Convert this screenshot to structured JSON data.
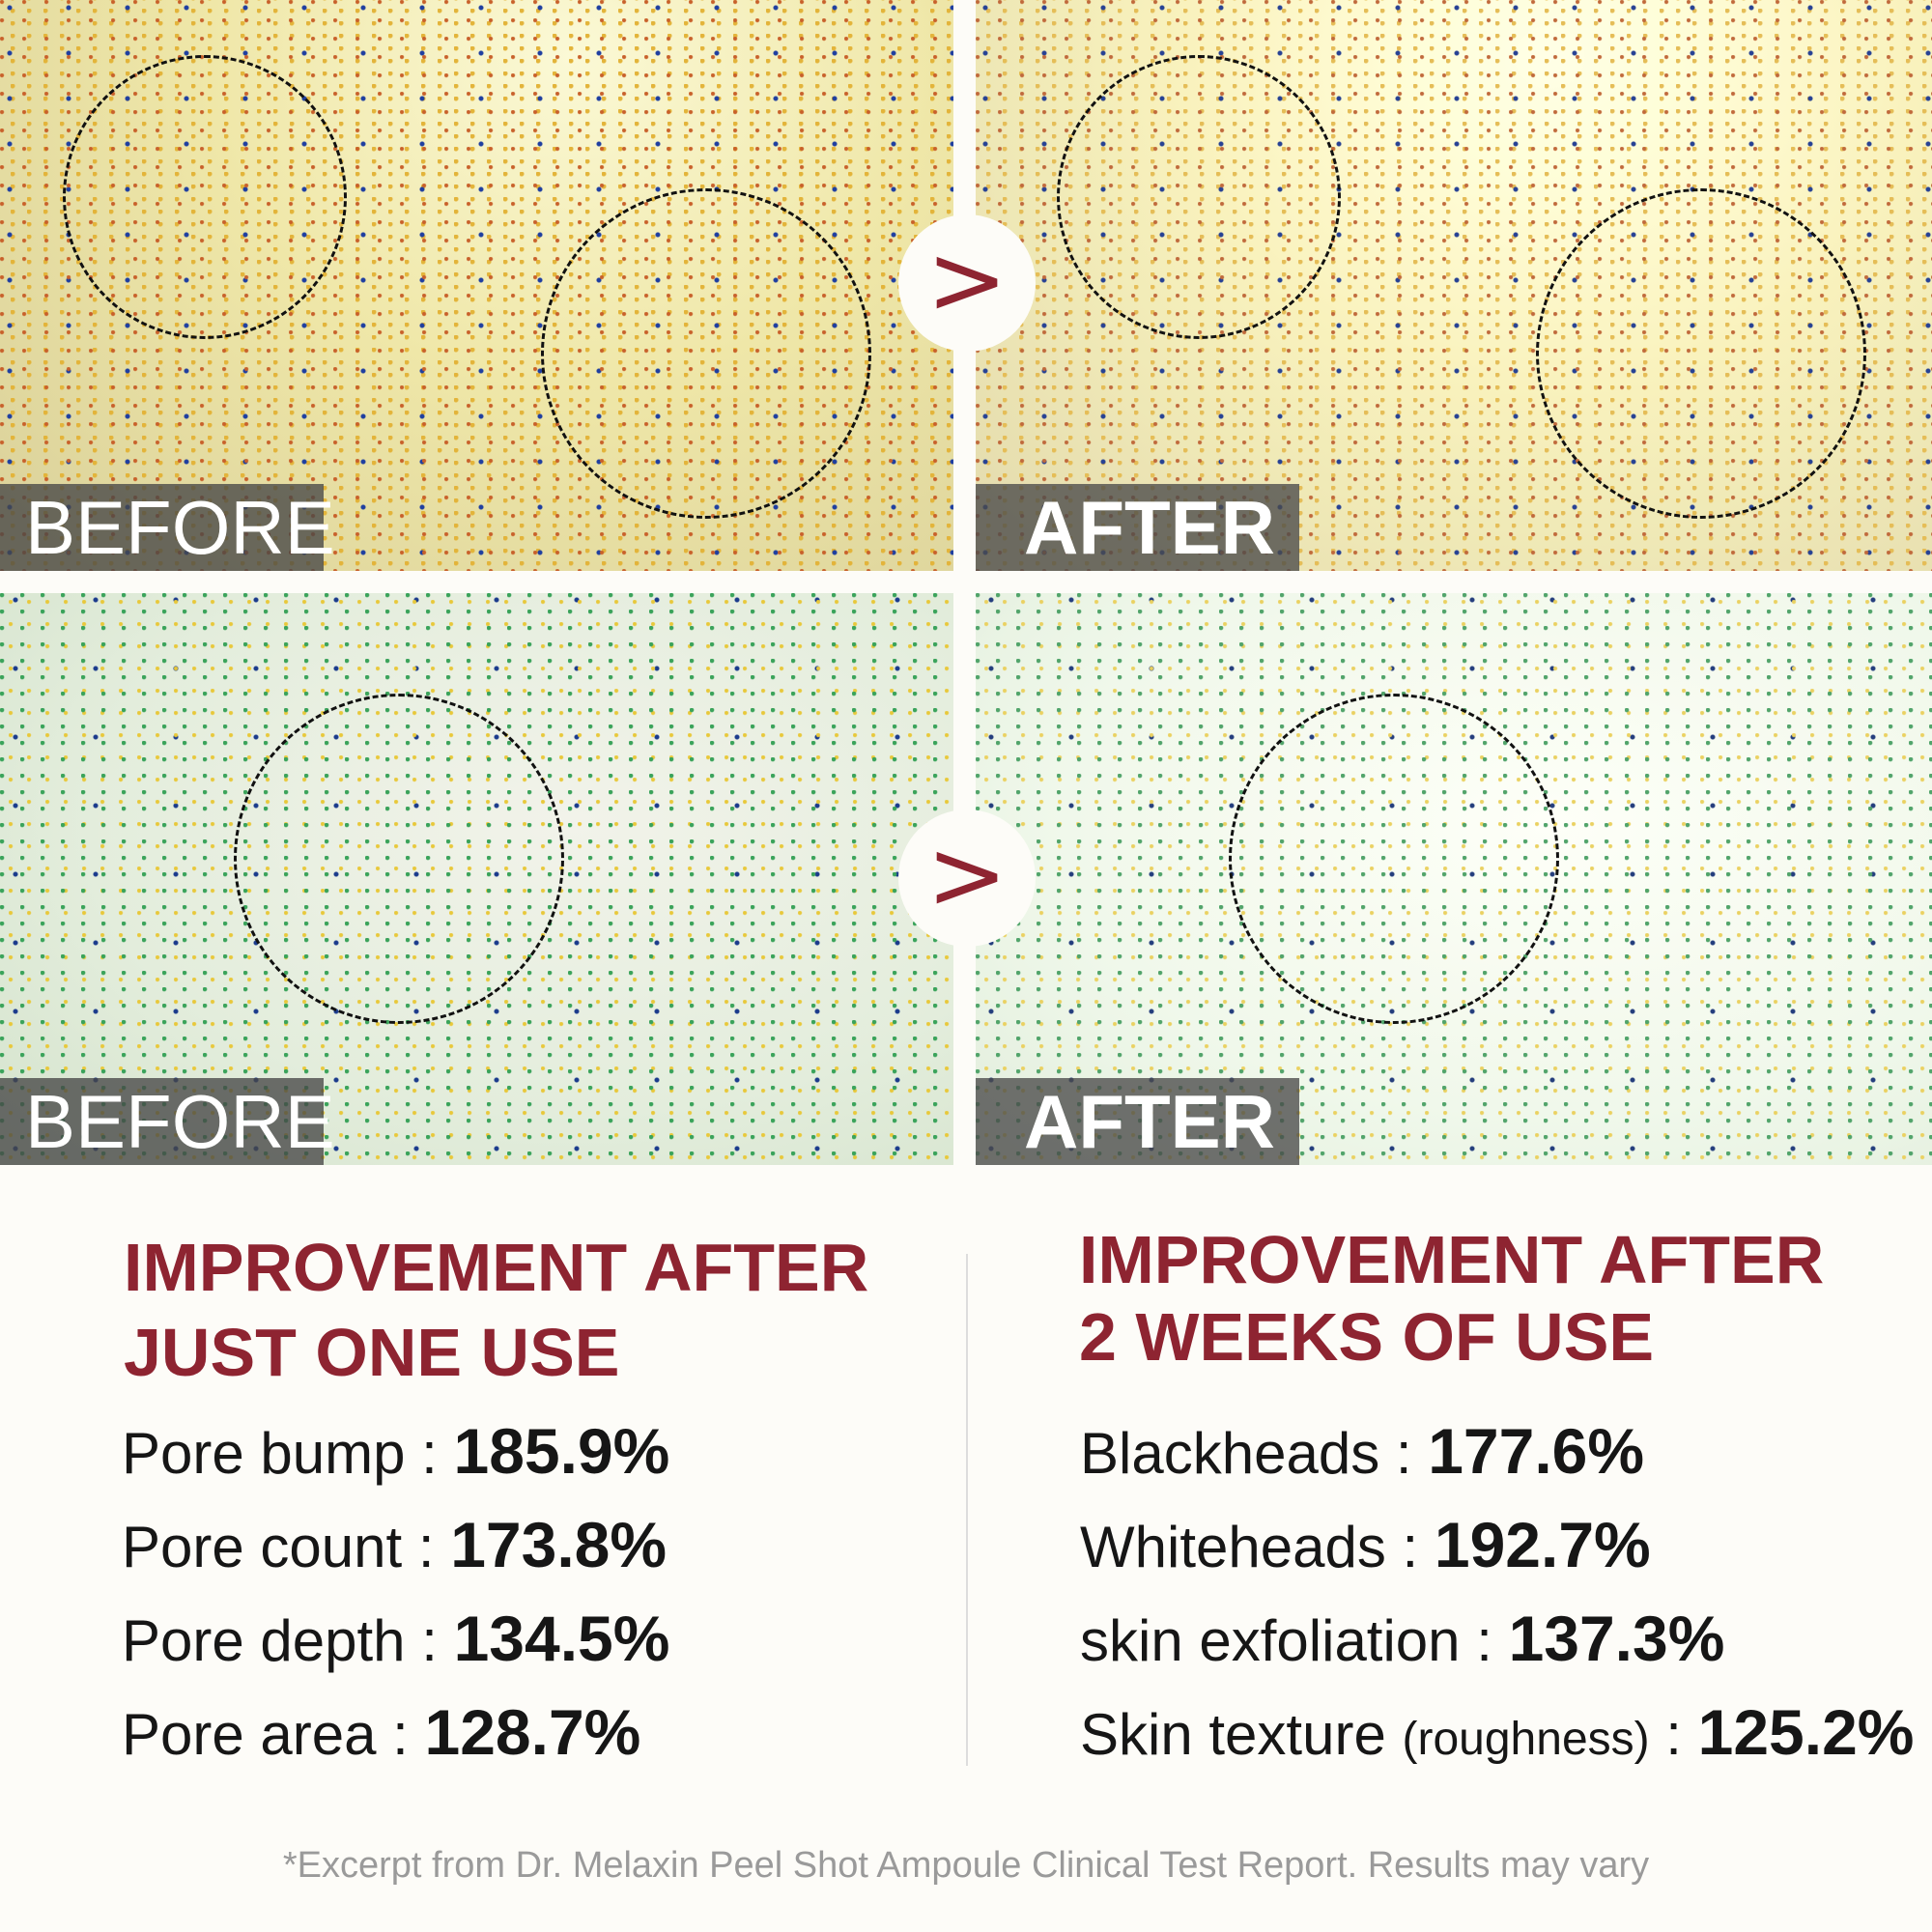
{
  "panels": {
    "before_label": "BEFORE",
    "after_label": "AFTER",
    "arrow_icon": "chevron-right-icon"
  },
  "left": {
    "heading_line1": "IMPROVEMENT AFTER",
    "heading_line2": "JUST ONE USE",
    "items": [
      {
        "label": "Pore bump :",
        "value": "185.9%"
      },
      {
        "label": "Pore count :",
        "value": "173.8%"
      },
      {
        "label": "Pore depth :",
        "value": "134.5%"
      },
      {
        "label": "Pore area :",
        "value": "128.7%"
      }
    ]
  },
  "right": {
    "heading_line1": "IMPROVEMENT AFTER",
    "heading_line2": "2 WEEKS OF USE",
    "items": [
      {
        "label": "Blackheads :",
        "value": "177.6%"
      },
      {
        "label": "Whiteheads :",
        "value": "192.7%"
      },
      {
        "label": "skin exfoliation :",
        "value": "137.3%"
      },
      {
        "label": "Skin texture",
        "sub": "(roughness)",
        "sep": ":",
        "value": "125.2%"
      }
    ]
  },
  "footnote": "*Excerpt from Dr. Melaxin Peel Shot Ampoule Clinical Test Report. Results may vary",
  "colors": {
    "accent": "#8e2431",
    "text": "#161616",
    "footnote": "#9a9a9a"
  }
}
